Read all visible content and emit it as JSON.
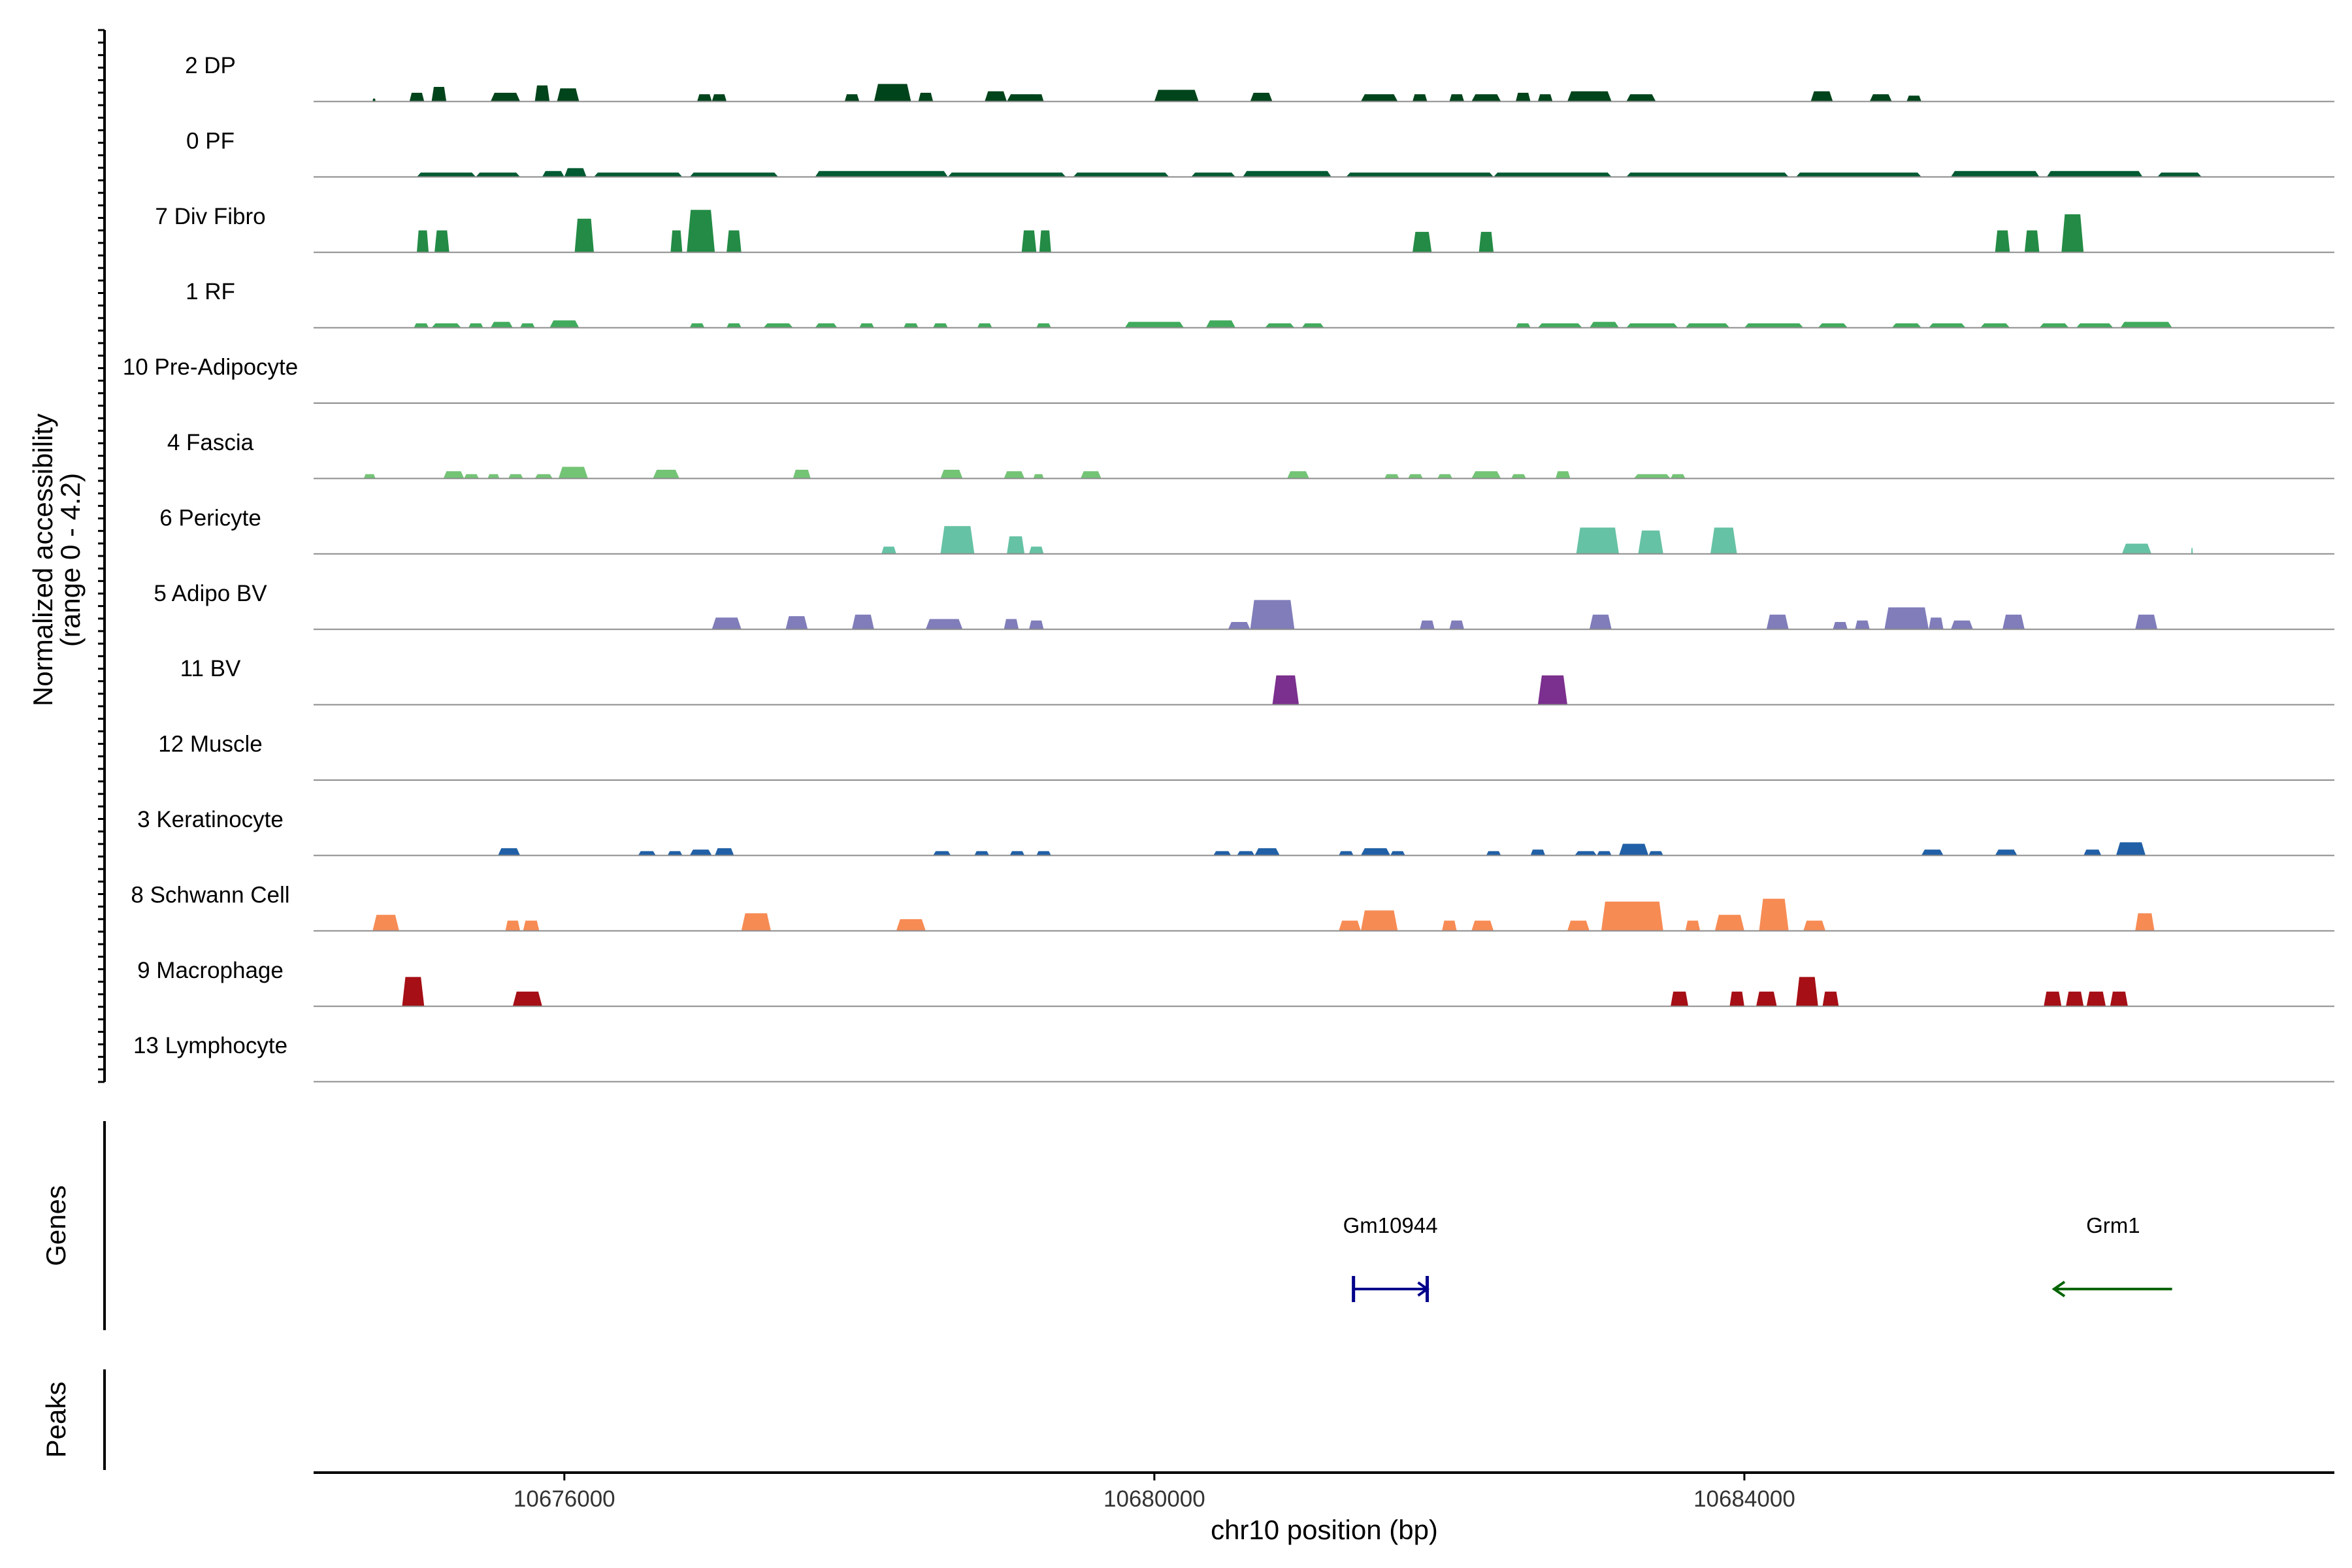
{
  "chart_data": {
    "type": "area",
    "title": "",
    "ylabel": "Normalized accessibility",
    "ylabel_range": "(range 0 - 4.2)",
    "ylim": [
      0,
      4.2
    ],
    "xlabel": "chr10 position (bp)",
    "xlim": [
      10674300,
      10688000
    ],
    "xticks": [
      10676000,
      10680000,
      10684000
    ],
    "xtick_labels": [
      "10676000",
      "10680000",
      "10684000"
    ],
    "genes_label": "Genes",
    "peaks_label": "Peaks",
    "tracks": [
      {
        "name": "2 DP",
        "color": "#00441b",
        "peaks": [
          [
            10674700,
            10674720,
            0.2
          ],
          [
            10674950,
            10675050,
            0.6
          ],
          [
            10675100,
            10675200,
            1.0
          ],
          [
            10675500,
            10675700,
            0.6
          ],
          [
            10675800,
            10675900,
            1.1
          ],
          [
            10676000,
            10676050,
            0.5
          ],
          [
            10675950,
            10676100,
            0.9
          ],
          [
            10676000,
            10676100,
            0.5
          ],
          [
            10676900,
            10677000,
            0.5
          ],
          [
            10677000,
            10677100,
            0.5
          ],
          [
            10677900,
            10678000,
            0.5
          ],
          [
            10678100,
            10678350,
            1.2
          ],
          [
            10678400,
            10678500,
            0.6
          ],
          [
            10678850,
            10679000,
            0.7
          ],
          [
            10679000,
            10679200,
            0.5
          ],
          [
            10679150,
            10679250,
            0.5
          ],
          [
            10680000,
            10680300,
            0.8
          ],
          [
            10680650,
            10680800,
            0.6
          ],
          [
            10681400,
            10681650,
            0.5
          ],
          [
            10681750,
            10681850,
            0.5
          ],
          [
            10682000,
            10682100,
            0.5
          ],
          [
            10682150,
            10682350,
            0.5
          ],
          [
            10682450,
            10682550,
            0.6
          ],
          [
            10682600,
            10682700,
            0.5
          ],
          [
            10682800,
            10683100,
            0.7
          ],
          [
            10683200,
            10683400,
            0.5
          ],
          [
            10684450,
            10684600,
            0.7
          ],
          [
            10684850,
            10685000,
            0.5
          ],
          [
            10685100,
            10685200,
            0.4
          ]
        ]
      },
      {
        "name": "0 PF",
        "color": "#005a32",
        "peaks": [
          [
            10675000,
            10675400,
            0.3
          ],
          [
            10675400,
            10675700,
            0.3
          ],
          [
            10675850,
            10676000,
            0.4
          ],
          [
            10676000,
            10676150,
            0.6
          ],
          [
            10676200,
            10676800,
            0.3
          ],
          [
            10676850,
            10677450,
            0.3
          ],
          [
            10677700,
            10678600,
            0.4
          ],
          [
            10678600,
            10679400,
            0.3
          ],
          [
            10679450,
            10680100,
            0.3
          ],
          [
            10680250,
            10680550,
            0.3
          ],
          [
            10680600,
            10681200,
            0.4
          ],
          [
            10681300,
            10682300,
            0.3
          ],
          [
            10682300,
            10683100,
            0.3
          ],
          [
            10683200,
            10684300,
            0.3
          ],
          [
            10684350,
            10685200,
            0.3
          ],
          [
            10685400,
            10686000,
            0.4
          ],
          [
            10686050,
            10686700,
            0.4
          ],
          [
            10686800,
            10687100,
            0.3
          ]
        ]
      },
      {
        "name": "7 Div Fibro",
        "color": "#238b45",
        "peaks": [
          [
            10675000,
            10675080,
            1.5
          ],
          [
            10675120,
            10675220,
            1.5
          ],
          [
            10676070,
            10676200,
            2.3
          ],
          [
            10676720,
            10676800,
            1.5
          ],
          [
            10676830,
            10677020,
            2.9
          ],
          [
            10677100,
            10677200,
            1.5
          ],
          [
            10679100,
            10679200,
            1.5
          ],
          [
            10679220,
            10679300,
            1.5
          ],
          [
            10681750,
            10681880,
            1.4
          ],
          [
            10682200,
            10682300,
            1.4
          ],
          [
            10685700,
            10685800,
            1.5
          ],
          [
            10685900,
            10686000,
            1.5
          ],
          [
            10686150,
            10686300,
            2.6
          ]
        ]
      },
      {
        "name": "1 RF",
        "color": "#41ab5d",
        "peaks": [
          [
            10674980,
            10675080,
            0.3
          ],
          [
            10675100,
            10675300,
            0.3
          ],
          [
            10675350,
            10675450,
            0.3
          ],
          [
            10675500,
            10675650,
            0.4
          ],
          [
            10675700,
            10675800,
            0.3
          ],
          [
            10675900,
            10676100,
            0.5
          ],
          [
            10676850,
            10676950,
            0.3
          ],
          [
            10677100,
            10677200,
            0.3
          ],
          [
            10677350,
            10677550,
            0.3
          ],
          [
            10677700,
            10677850,
            0.3
          ],
          [
            10678000,
            10678100,
            0.3
          ],
          [
            10678300,
            10678400,
            0.3
          ],
          [
            10678500,
            10678600,
            0.3
          ],
          [
            10678800,
            10678900,
            0.3
          ],
          [
            10679200,
            10679300,
            0.3
          ],
          [
            10679800,
            10680200,
            0.4
          ],
          [
            10680350,
            10680550,
            0.5
          ],
          [
            10680750,
            10680950,
            0.3
          ],
          [
            10681000,
            10681150,
            0.3
          ],
          [
            10682450,
            10682550,
            0.3
          ],
          [
            10682600,
            10682900,
            0.3
          ],
          [
            10682950,
            10683150,
            0.4
          ],
          [
            10683200,
            10683550,
            0.3
          ],
          [
            10683600,
            10683900,
            0.3
          ],
          [
            10684000,
            10684400,
            0.3
          ],
          [
            10684500,
            10684700,
            0.3
          ],
          [
            10685000,
            10685200,
            0.3
          ],
          [
            10685250,
            10685500,
            0.3
          ],
          [
            10685600,
            10685800,
            0.3
          ],
          [
            10686000,
            10686200,
            0.3
          ],
          [
            10686250,
            10686500,
            0.3
          ],
          [
            10686550,
            10686900,
            0.4
          ]
        ]
      },
      {
        "name": "10 Pre-Adipocyte",
        "color": "#74c476",
        "peaks": []
      },
      {
        "name": "4 Fascia",
        "color": "#74c476",
        "peaks": [
          [
            10674640,
            10674720,
            0.3
          ],
          [
            10675180,
            10675320,
            0.5
          ],
          [
            10675320,
            10675420,
            0.3
          ],
          [
            10675480,
            10675560,
            0.3
          ],
          [
            10675620,
            10675720,
            0.3
          ],
          [
            10675800,
            10675920,
            0.3
          ],
          [
            10675960,
            10676160,
            0.8
          ],
          [
            10676600,
            10676780,
            0.6
          ],
          [
            10677550,
            10677670,
            0.6
          ],
          [
            10678550,
            10678700,
            0.6
          ],
          [
            10678980,
            10679120,
            0.5
          ],
          [
            10679180,
            10679250,
            0.3
          ],
          [
            10679500,
            10679640,
            0.5
          ],
          [
            10680900,
            10681050,
            0.5
          ],
          [
            10681560,
            10681660,
            0.3
          ],
          [
            10681720,
            10681820,
            0.3
          ],
          [
            10681920,
            10682020,
            0.3
          ],
          [
            10682150,
            10682350,
            0.5
          ],
          [
            10682420,
            10682520,
            0.3
          ],
          [
            10682720,
            10682820,
            0.5
          ],
          [
            10683250,
            10683500,
            0.3
          ],
          [
            10683500,
            10683600,
            0.3
          ]
        ]
      },
      {
        "name": "6 Pericyte",
        "color": "#66c2a4",
        "peaks": [
          [
            10678150,
            10678250,
            0.5
          ],
          [
            10678550,
            10678780,
            1.9
          ],
          [
            10679000,
            10679120,
            1.2
          ],
          [
            10679150,
            10679250,
            0.5
          ],
          [
            10682860,
            10683150,
            1.8
          ],
          [
            10683280,
            10683450,
            1.6
          ],
          [
            10683770,
            10683950,
            1.8
          ],
          [
            10686560,
            10686760,
            0.7
          ],
          [
            10687030,
            10687040,
            0.4
          ]
        ]
      },
      {
        "name": "5 Adipo BV",
        "color": "#807dba",
        "peaks": [
          [
            10677000,
            10677200,
            0.8
          ],
          [
            10677500,
            10677650,
            0.9
          ],
          [
            10677950,
            10678100,
            1.0
          ],
          [
            10678450,
            10678700,
            0.7
          ],
          [
            10678980,
            10679080,
            0.7
          ],
          [
            10679150,
            10679250,
            0.6
          ],
          [
            10680500,
            10680650,
            0.5
          ],
          [
            10680650,
            10680950,
            2.0
          ],
          [
            10681800,
            10681900,
            0.6
          ],
          [
            10682000,
            10682100,
            0.6
          ],
          [
            10682950,
            10683100,
            1.0
          ],
          [
            10684150,
            10684300,
            1.0
          ],
          [
            10684600,
            10684700,
            0.5
          ],
          [
            10684750,
            10684850,
            0.6
          ],
          [
            10684950,
            10685250,
            1.5
          ],
          [
            10685250,
            10685350,
            0.8
          ],
          [
            10685400,
            10685550,
            0.6
          ],
          [
            10685750,
            10685900,
            1.0
          ],
          [
            10686650,
            10686800,
            1.0
          ]
        ]
      },
      {
        "name": "11 BV",
        "color": "#7b2f8e",
        "peaks": [
          [
            10680800,
            10680980,
            2.0
          ],
          [
            10682600,
            10682800,
            2.0
          ]
        ]
      },
      {
        "name": "12 Muscle",
        "color": "#4292c6",
        "peaks": []
      },
      {
        "name": "3 Keratinocyte",
        "color": "#2160a6",
        "peaks": [
          [
            10675550,
            10675700,
            0.5
          ],
          [
            10676500,
            10676620,
            0.3
          ],
          [
            10676700,
            10676800,
            0.3
          ],
          [
            10676850,
            10677000,
            0.4
          ],
          [
            10677020,
            10677150,
            0.5
          ],
          [
            10678500,
            10678620,
            0.3
          ],
          [
            10678780,
            10678880,
            0.3
          ],
          [
            10679020,
            10679120,
            0.3
          ],
          [
            10679200,
            10679300,
            0.3
          ],
          [
            10680400,
            10680520,
            0.3
          ],
          [
            10680560,
            10680680,
            0.3
          ],
          [
            10680680,
            10680850,
            0.5
          ],
          [
            10681250,
            10681350,
            0.3
          ],
          [
            10681400,
            10681600,
            0.5
          ],
          [
            10681600,
            10681700,
            0.3
          ],
          [
            10682250,
            10682350,
            0.3
          ],
          [
            10682550,
            10682650,
            0.4
          ],
          [
            10682850,
            10683000,
            0.3
          ],
          [
            10683000,
            10683100,
            0.3
          ],
          [
            10683150,
            10683350,
            0.8
          ],
          [
            10683350,
            10683450,
            0.3
          ],
          [
            10685200,
            10685350,
            0.4
          ],
          [
            10685700,
            10685850,
            0.4
          ],
          [
            10686300,
            10686420,
            0.4
          ],
          [
            10686520,
            10686720,
            0.9
          ]
        ]
      },
      {
        "name": "8 Schwann Cell",
        "color": "#f78b54",
        "peaks": [
          [
            10674700,
            10674880,
            1.1
          ],
          [
            10675600,
            10675700,
            0.7
          ],
          [
            10675720,
            10675830,
            0.7
          ],
          [
            10677200,
            10677400,
            1.2
          ],
          [
            10678250,
            10678450,
            0.8
          ],
          [
            10681250,
            10681400,
            0.7
          ],
          [
            10681400,
            10681650,
            1.4
          ],
          [
            10681950,
            10682050,
            0.7
          ],
          [
            10682150,
            10682300,
            0.7
          ],
          [
            10682800,
            10682950,
            0.7
          ],
          [
            10683030,
            10683450,
            2.0
          ],
          [
            10683600,
            10683700,
            0.7
          ],
          [
            10683800,
            10684000,
            1.1
          ],
          [
            10684100,
            10684300,
            2.2
          ],
          [
            10684400,
            10684550,
            0.7
          ],
          [
            10686650,
            10686780,
            1.2
          ]
        ]
      },
      {
        "name": "9 Macrophage",
        "color": "#a50f15",
        "peaks": [
          [
            10674900,
            10675050,
            2.0
          ],
          [
            10675650,
            10675850,
            1.0
          ],
          [
            10683500,
            10683620,
            1.0
          ],
          [
            10683900,
            10684000,
            1.0
          ],
          [
            10684080,
            10684220,
            1.0
          ],
          [
            10684350,
            10684500,
            2.0
          ],
          [
            10684530,
            10684640,
            1.0
          ],
          [
            10686030,
            10686150,
            1.0
          ],
          [
            10686180,
            10686300,
            1.0
          ],
          [
            10686320,
            10686450,
            1.0
          ],
          [
            10686480,
            10686600,
            1.0
          ]
        ]
      },
      {
        "name": "13 Lymphocyte",
        "color": "#4a1486",
        "peaks": []
      }
    ],
    "genes": [
      {
        "name": "Gm10944",
        "start": 10681350,
        "end": 10681850,
        "strand": "+",
        "color": "#00008b"
      },
      {
        "name": "Grm1",
        "start": 10686100,
        "end": 10686900,
        "strand": "-",
        "color": "#006400"
      }
    ]
  }
}
